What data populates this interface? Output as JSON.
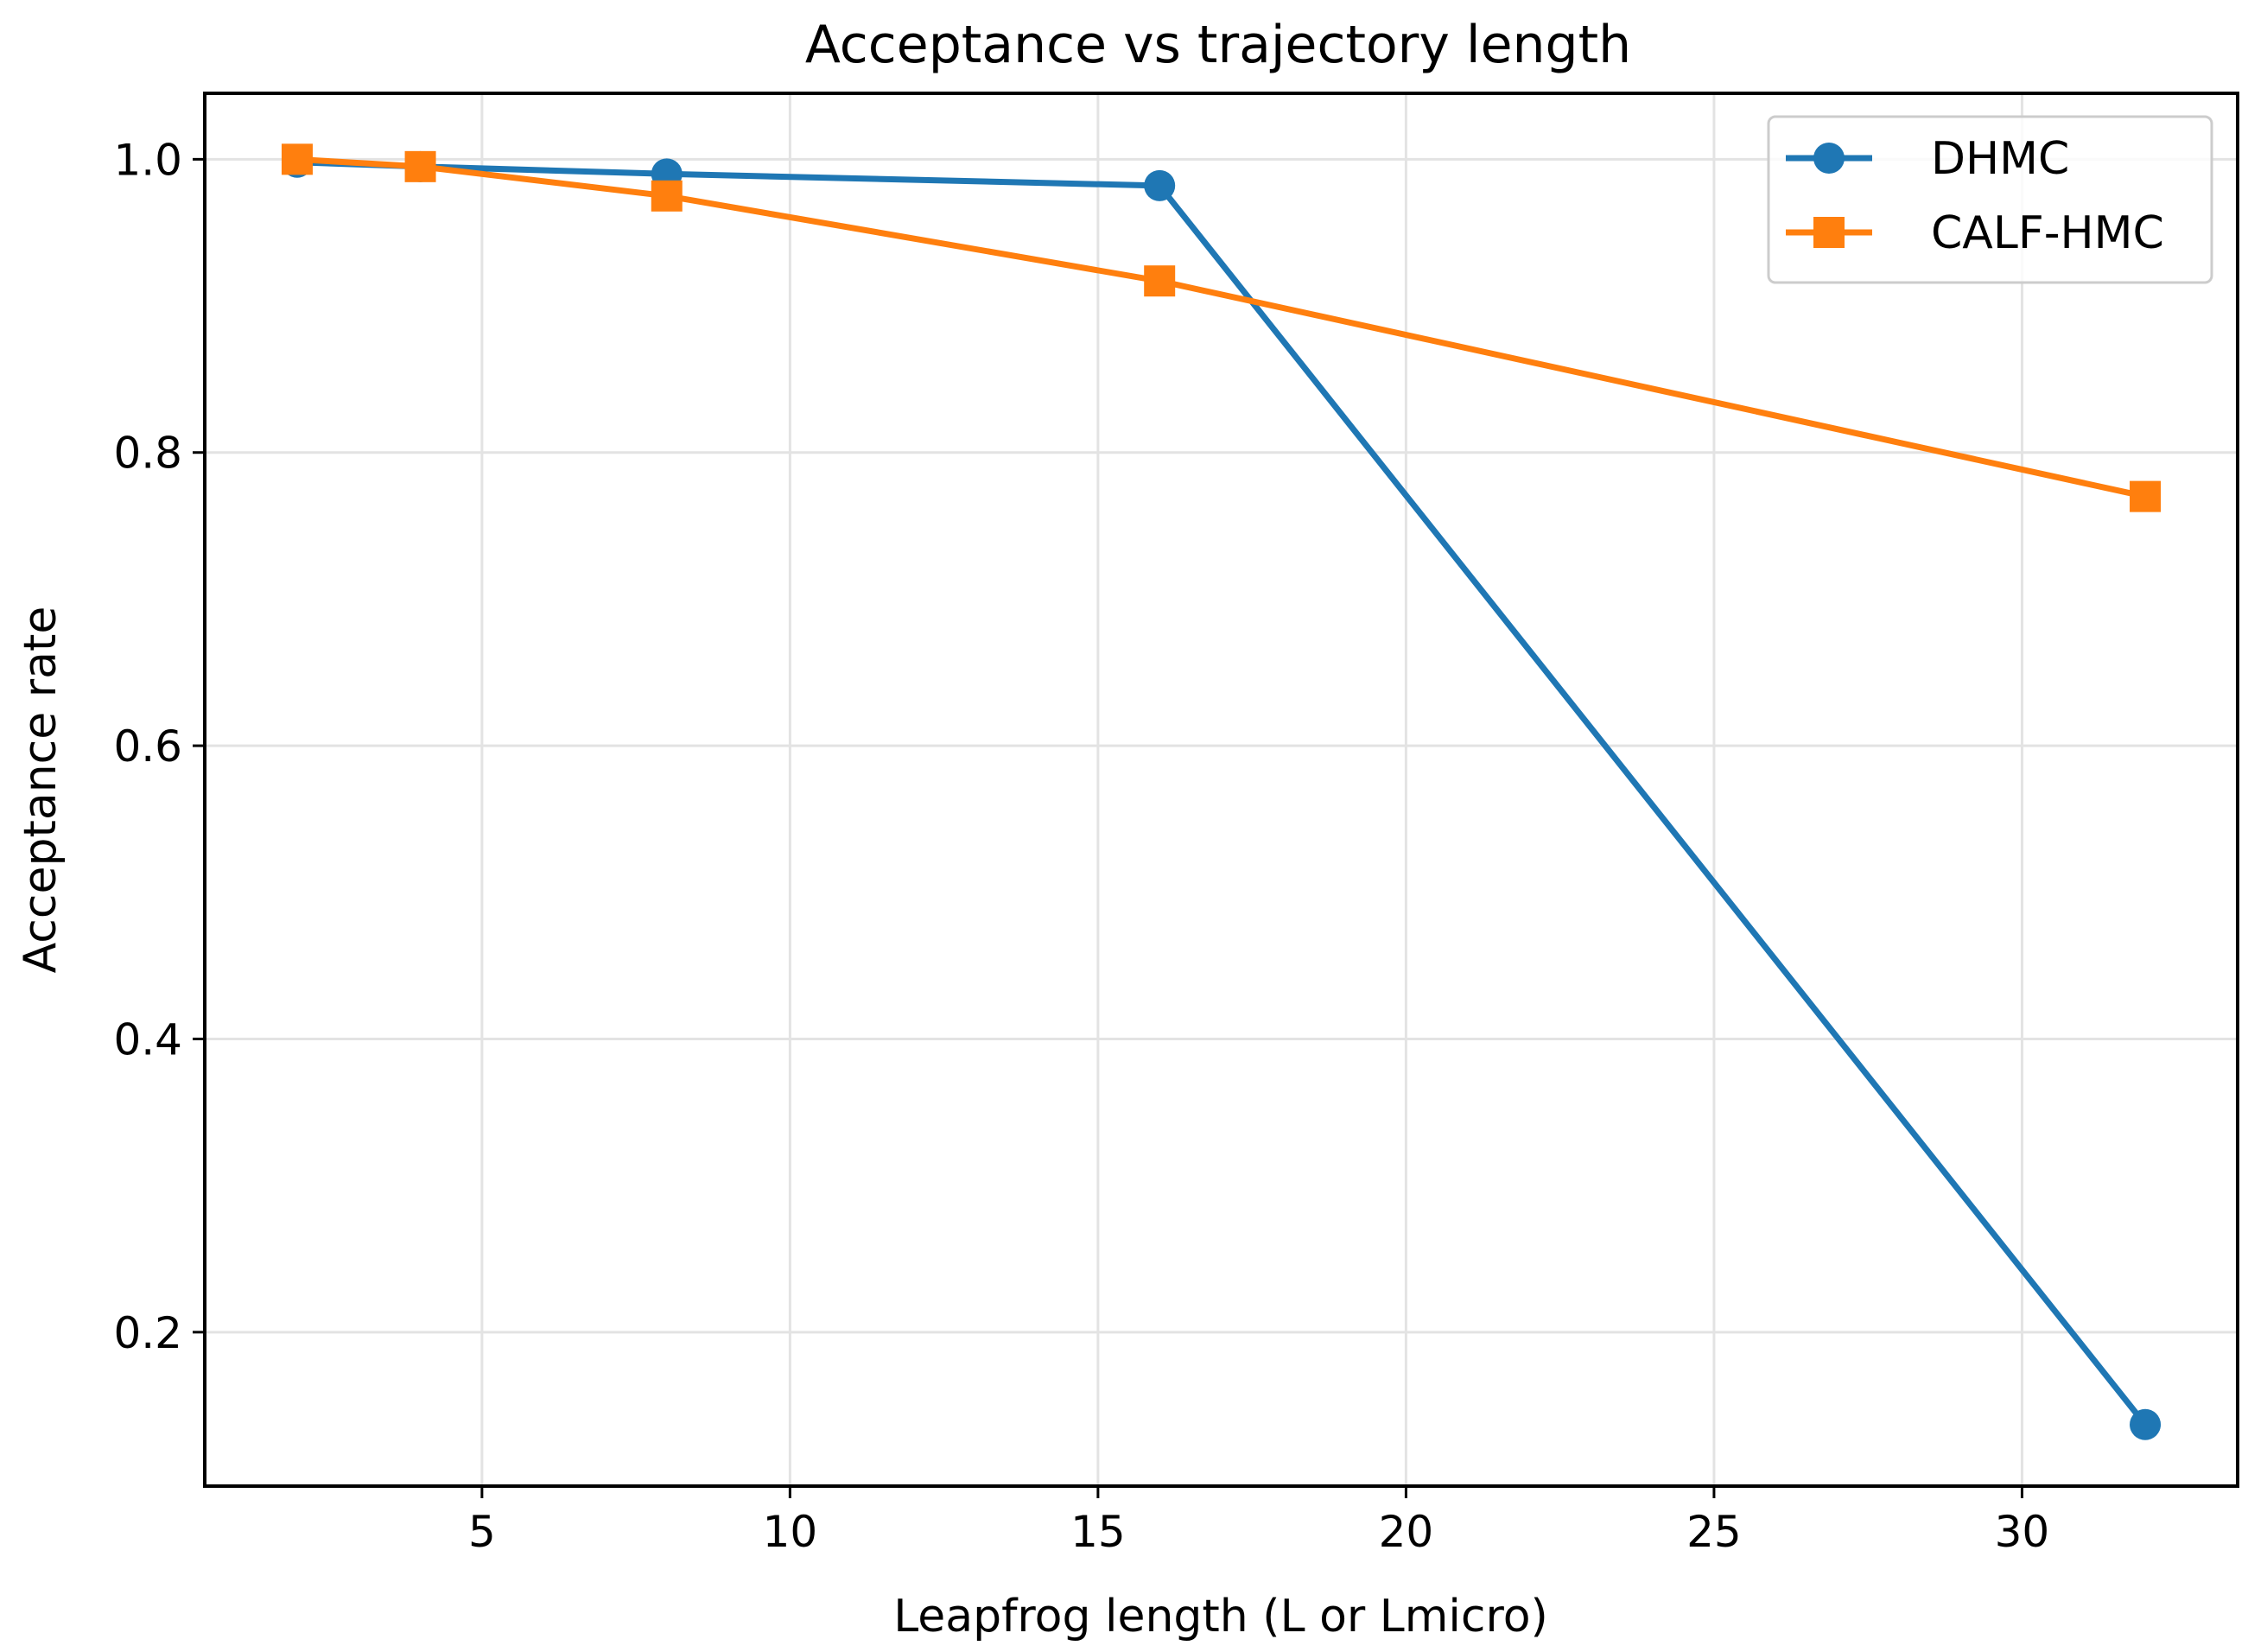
{
  "chart_data": {
    "type": "line",
    "title": "Acceptance vs trajectory length",
    "xlabel": "Leapfrog length (L or Lmicro)",
    "ylabel": "Acceptance rate",
    "xlim": [
      0.5,
      33.5
    ],
    "ylim": [
      0.095,
      1.045
    ],
    "xticks": [
      5,
      10,
      15,
      20,
      25,
      30
    ],
    "xtick_labels": [
      "5",
      "10",
      "15",
      "20",
      "25",
      "30"
    ],
    "yticks": [
      0.2,
      0.4,
      0.6,
      0.8,
      1.0
    ],
    "ytick_labels": [
      "0.2",
      "0.4",
      "0.6",
      "0.8",
      "1.0"
    ],
    "grid": true,
    "legend_position": "top-right",
    "series": [
      {
        "name": "DHMC",
        "color": "#1f77b4",
        "marker": "circle",
        "x": [
          2,
          4,
          8,
          16,
          32
        ],
        "y": [
          0.998,
          0.995,
          0.99,
          0.982,
          0.137
        ]
      },
      {
        "name": "CALF-HMC",
        "color": "#ff7f0e",
        "marker": "square",
        "x": [
          2,
          4,
          8,
          16,
          32
        ],
        "y": [
          1.0,
          0.995,
          0.975,
          0.917,
          0.77
        ]
      }
    ]
  }
}
